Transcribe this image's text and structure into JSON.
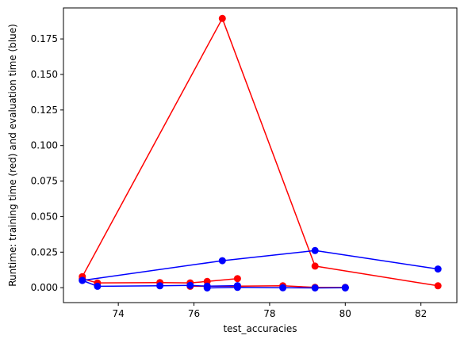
{
  "chart_data": {
    "type": "line",
    "title": "",
    "xlabel": "test_accuracies",
    "ylabel": "Runtime: training time (red) and evaluation time (blue)",
    "xlim": [
      72.55,
      82.95
    ],
    "ylim": [
      -0.0105,
      0.1968
    ],
    "xticks": [
      74,
      76,
      78,
      80,
      82
    ],
    "xtick_labels": [
      "74",
      "76",
      "78",
      "80",
      "82"
    ],
    "yticks": [
      0.0,
      0.025,
      0.05,
      0.075,
      0.1,
      0.125,
      0.15,
      0.175
    ],
    "ytick_labels": [
      "0.000",
      "0.025",
      "0.050",
      "0.075",
      "0.100",
      "0.125",
      "0.150",
      "0.175"
    ],
    "grid": false,
    "series": [
      {
        "color": "#ff0000",
        "points": [
          {
            "x": 73.05,
            "y": 0.0078
          },
          {
            "x": 76.75,
            "y": 0.1894
          },
          {
            "x": 79.2,
            "y": 0.0152
          },
          {
            "x": 82.45,
            "y": 0.0013
          }
        ]
      },
      {
        "color": "#ff0000",
        "points": [
          {
            "x": 73.05,
            "y": 0.0063
          },
          {
            "x": 73.45,
            "y": 0.0033
          },
          {
            "x": 75.1,
            "y": 0.0036
          },
          {
            "x": 75.9,
            "y": 0.0034
          },
          {
            "x": 76.35,
            "y": 0.0044
          },
          {
            "x": 77.15,
            "y": 0.0064
          }
        ]
      },
      {
        "color": "#ff0000",
        "points": [
          {
            "x": 75.9,
            "y": 0.001
          },
          {
            "x": 77.15,
            "y": 0.0011
          },
          {
            "x": 78.35,
            "y": 0.0013
          },
          {
            "x": 79.2,
            "y": 0.0002
          },
          {
            "x": 80.0,
            "y": 0.0002
          }
        ]
      },
      {
        "color": "#0000ff",
        "points": [
          {
            "x": 73.05,
            "y": 0.0051
          },
          {
            "x": 76.75,
            "y": 0.019
          },
          {
            "x": 79.2,
            "y": 0.0261
          },
          {
            "x": 82.45,
            "y": 0.0131
          }
        ]
      },
      {
        "color": "#0000ff",
        "points": [
          {
            "x": 73.05,
            "y": 0.0051
          },
          {
            "x": 73.45,
            "y": 0.001
          },
          {
            "x": 75.1,
            "y": 0.0013
          },
          {
            "x": 75.9,
            "y": 0.0016
          },
          {
            "x": 76.35,
            "y": 0.0011
          },
          {
            "x": 77.15,
            "y": 0.0014
          }
        ]
      },
      {
        "color": "#0000ff",
        "points": [
          {
            "x": 76.35,
            "y": -0.0002
          },
          {
            "x": 77.15,
            "y": 0.0002
          },
          {
            "x": 78.35,
            "y": -0.0001
          },
          {
            "x": 79.2,
            "y": -0.0002
          },
          {
            "x": 80.0,
            "y": 0.0
          }
        ]
      },
      {
        "color": "#0000ff",
        "points": [
          {
            "x": 80.0,
            "y": 0.0001
          },
          {
            "x": 80.0,
            "y": -0.0002
          }
        ]
      }
    ]
  }
}
